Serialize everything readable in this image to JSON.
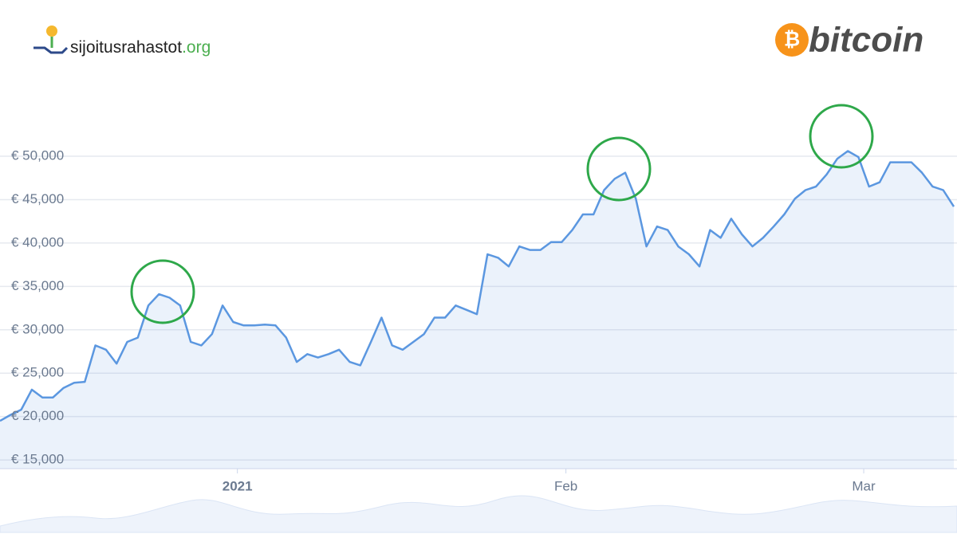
{
  "brand": {
    "name": "sijoitusrahastot",
    "tld": ".org"
  },
  "logo": {
    "symbol": "₿",
    "name": "bitcoin"
  },
  "chart_data": {
    "type": "line",
    "x": [
      0,
      1,
      2,
      3,
      4,
      5,
      6,
      7,
      8,
      9,
      10,
      11,
      12,
      13,
      14,
      15,
      16,
      17,
      18,
      19,
      20,
      21,
      22,
      23,
      24,
      25,
      26,
      27,
      28,
      29,
      30,
      31,
      32,
      33,
      34,
      35,
      36,
      37,
      38,
      39,
      40,
      41,
      42,
      43,
      44,
      45,
      46,
      47,
      48,
      49,
      50,
      51,
      52,
      53,
      54,
      55,
      56,
      57,
      58,
      59,
      60,
      61,
      62,
      63,
      64,
      65,
      66,
      67,
      68,
      69,
      70,
      71,
      72,
      73,
      74,
      75,
      76,
      77,
      78,
      79,
      80,
      81,
      82,
      83,
      84,
      85,
      86,
      87,
      88,
      89,
      90
    ],
    "series": [
      {
        "color": "#5b97e0",
        "values": [
          19500,
          20200,
          20800,
          23100,
          22200,
          22200,
          23300,
          23900,
          24000,
          28200,
          27700,
          26100,
          28600,
          29100,
          32800,
          34100,
          33700,
          32800,
          28600,
          28200,
          29500,
          32800,
          30900,
          30500,
          30500,
          30600,
          30500,
          29100,
          26300,
          27200,
          26800,
          27200,
          27700,
          26300,
          25900,
          28600,
          31400,
          28200,
          27700,
          28600,
          29500,
          31400,
          31400,
          32800,
          32300,
          31800,
          38700,
          38300,
          37300,
          39600,
          39200,
          39200,
          40100,
          40100,
          41500,
          43300,
          43300,
          46100,
          47400,
          48100,
          45100,
          39600,
          41900,
          41500,
          39600,
          38700,
          37300,
          41500,
          40600,
          42800,
          41000,
          39600,
          40600,
          41900,
          43300,
          45100,
          46100,
          46500,
          47900,
          49700,
          50600,
          49900,
          46500,
          47000,
          49300,
          49300,
          49300,
          48100,
          46500,
          46100,
          44200
        ]
      }
    ],
    "xlim": [
      0,
      90
    ],
    "xticks": [
      {
        "value": 22.4,
        "label": "2021"
      },
      {
        "value": 53.4,
        "label": "Feb"
      },
      {
        "value": 81.5,
        "label": "Mar"
      }
    ],
    "ylim": [
      14000,
      59000
    ],
    "yticks": [
      {
        "value": 15000,
        "label": "€ 15,000"
      },
      {
        "value": 20000,
        "label": "€ 20,000"
      },
      {
        "value": 25000,
        "label": "€ 25,000"
      },
      {
        "value": 30000,
        "label": "€ 30,000"
      },
      {
        "value": 35000,
        "label": "€ 35,000"
      },
      {
        "value": 40000,
        "label": "€ 40,000"
      },
      {
        "value": 45000,
        "label": "€ 45,000"
      },
      {
        "value": 50000,
        "label": "€ 50,000"
      }
    ],
    "grid": true
  }
}
